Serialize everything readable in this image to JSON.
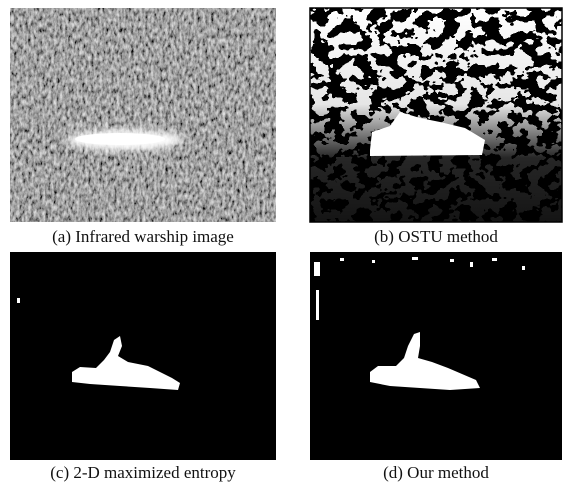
{
  "figure": {
    "panels": [
      {
        "caption": "(a) Infrared warship image"
      },
      {
        "caption": "(b) OSTU method"
      },
      {
        "caption": "(c) 2-D maximized entropy"
      },
      {
        "caption": "(d) Our method"
      }
    ]
  }
}
